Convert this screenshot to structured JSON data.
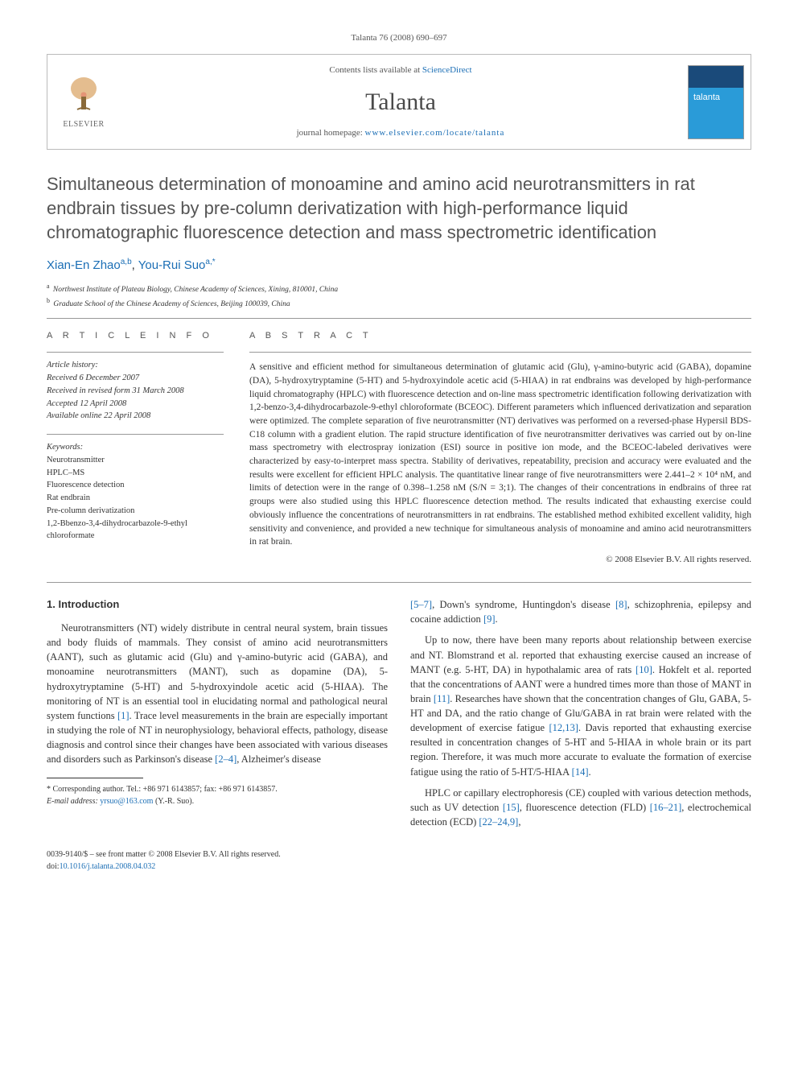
{
  "citation": "Talanta 76 (2008) 690–697",
  "header": {
    "contents_prefix": "Contents lists available at ",
    "contents_link": "ScienceDirect",
    "journal": "Talanta",
    "homepage_prefix": "journal homepage: ",
    "homepage_url": "www.elsevier.com/locate/talanta",
    "publisher": "ELSEVIER"
  },
  "title": "Simultaneous determination of monoamine and amino acid neurotransmitters in rat endbrain tissues by pre-column derivatization with high-performance liquid chromatographic fluorescence detection and mass spectrometric identification",
  "authors": [
    {
      "name": "Xian-En Zhao",
      "affmark": "a,b"
    },
    {
      "name": "You-Rui Suo",
      "affmark": "a,*"
    }
  ],
  "affiliations": [
    {
      "mark": "a",
      "text": "Northwest Institute of Plateau Biology, Chinese Academy of Sciences, Xining, 810001, China"
    },
    {
      "mark": "b",
      "text": "Graduate School of the Chinese Academy of Sciences, Beijing 100039, China"
    }
  ],
  "info_label": "A R T I C L E   I N F O",
  "abstract_label": "A B S T R A C T",
  "history": {
    "label": "Article history:",
    "received": "Received 6 December 2007",
    "revised": "Received in revised form 31 March 2008",
    "accepted": "Accepted 12 April 2008",
    "online": "Available online 22 April 2008"
  },
  "keywords": {
    "label": "Keywords:",
    "items": [
      "Neurotransmitter",
      "HPLC–MS",
      "Fluorescence detection",
      "Rat endbrain",
      "Pre-column derivatization",
      "1,2-Bbenzo-3,4-dihydrocarbazole-9-ethyl chloroformate"
    ]
  },
  "abstract": "A sensitive and efficient method for simultaneous determination of glutamic acid (Glu), γ-amino-butyric acid (GABA), dopamine (DA), 5-hydroxytryptamine (5-HT) and 5-hydroxyindole acetic acid (5-HIAA) in rat endbrains was developed by high-performance liquid chromatography (HPLC) with fluorescence detection and on-line mass spectrometric identification following derivatization with 1,2-benzo-3,4-dihydrocarbazole-9-ethyl chloroformate (BCEOC). Different parameters which influenced derivatization and separation were optimized. The complete separation of five neurotransmitter (NT) derivatives was performed on a reversed-phase Hypersil BDS-C18 column with a gradient elution. The rapid structure identification of five neurotransmitter derivatives was carried out by on-line mass spectrometry with electrospray ionization (ESI) source in positive ion mode, and the BCEOC-labeled derivatives were characterized by easy-to-interpret mass spectra. Stability of derivatives, repeatability, precision and accuracy were evaluated and the results were excellent for efficient HPLC analysis. The quantitative linear range of five neurotransmitters were 2.441–2 × 10⁴ nM, and limits of detection were in the range of 0.398–1.258 nM (S/N = 3;1). The changes of their concentrations in endbrains of three rat groups were also studied using this HPLC fluorescence detection method. The results indicated that exhausting exercise could obviously influence the concentrations of neurotransmitters in rat endbrains. The established method exhibited excellent validity, high sensitivity and convenience, and provided a new technique for simultaneous analysis of monoamine and amino acid neurotransmitters in rat brain.",
  "copyright": "© 2008 Elsevier B.V. All rights reserved.",
  "body": {
    "section_heading": "1.  Introduction",
    "col1_p1": "Neurotransmitters (NT) widely distribute in central neural system, brain tissues and body fluids of mammals. They consist of amino acid neurotransmitters (AANT), such as glutamic acid (Glu) and γ-amino-butyric acid (GABA), and monoamine neurotransmitters (MANT), such as dopamine (DA), 5-hydroxytryptamine (5-HT) and 5-hydroxyindole acetic acid (5-HIAA). The monitoring of NT is an essential tool in elucidating normal and pathological neural system functions [1]. Trace level measurements in the brain are especially important in studying the role of NT in neurophysiology, behavioral effects, pathology, disease diagnosis and control since their changes have been associated with various diseases and disorders such as Parkinson's disease [2–4], Alzheimer's disease",
    "col2_p1": "[5–7], Down's syndrome, Huntingdon's disease [8], schizophrenia, epilepsy and cocaine addiction [9].",
    "col2_p2": "Up to now, there have been many reports about relationship between exercise and NT. Blomstrand et al. reported that exhausting exercise caused an increase of MANT (e.g. 5-HT, DA) in hypothalamic area of rats [10]. Hokfelt et al. reported that the concentrations of AANT were a hundred times more than those of MANT in brain [11]. Researches have shown that the concentration changes of Glu, GABA, 5-HT and DA, and the ratio change of Glu/GABA in rat brain were related with the development of exercise fatigue [12,13]. Davis reported that exhausting exercise resulted in concentration changes of 5-HT and 5-HIAA in whole brain or its part region. Therefore, it was much more accurate to evaluate the formation of exercise fatigue using the ratio of 5-HT/5-HIAA [14].",
    "col2_p3": "HPLC or capillary electrophoresis (CE) coupled with various detection methods, such as UV detection [15], fluorescence detection (FLD) [16–21], electrochemical detection (ECD) [22–24,9],"
  },
  "footnote": {
    "corr": "* Corresponding author. Tel.: +86 971 6143857; fax: +86 971 6143857.",
    "email_label": "E-mail address: ",
    "email": "yrsuo@163.com",
    "email_suffix": " (Y.-R. Suo)."
  },
  "footer": {
    "issn": "0039-9140/$ – see front matter © 2008 Elsevier B.V. All rights reserved.",
    "doi_label": "doi:",
    "doi": "10.1016/j.talanta.2008.04.032"
  },
  "refs": {
    "r1": "[1]",
    "r24": "[2–4]",
    "r57": "[5–7]",
    "r8": "[8]",
    "r9": "[9]",
    "r10": "[10]",
    "r11": "[11]",
    "r1213": "[12,13]",
    "r14": "[14]",
    "r15": "[15]",
    "r1621": "[16–21]",
    "r22249": "[22–24,9]"
  }
}
